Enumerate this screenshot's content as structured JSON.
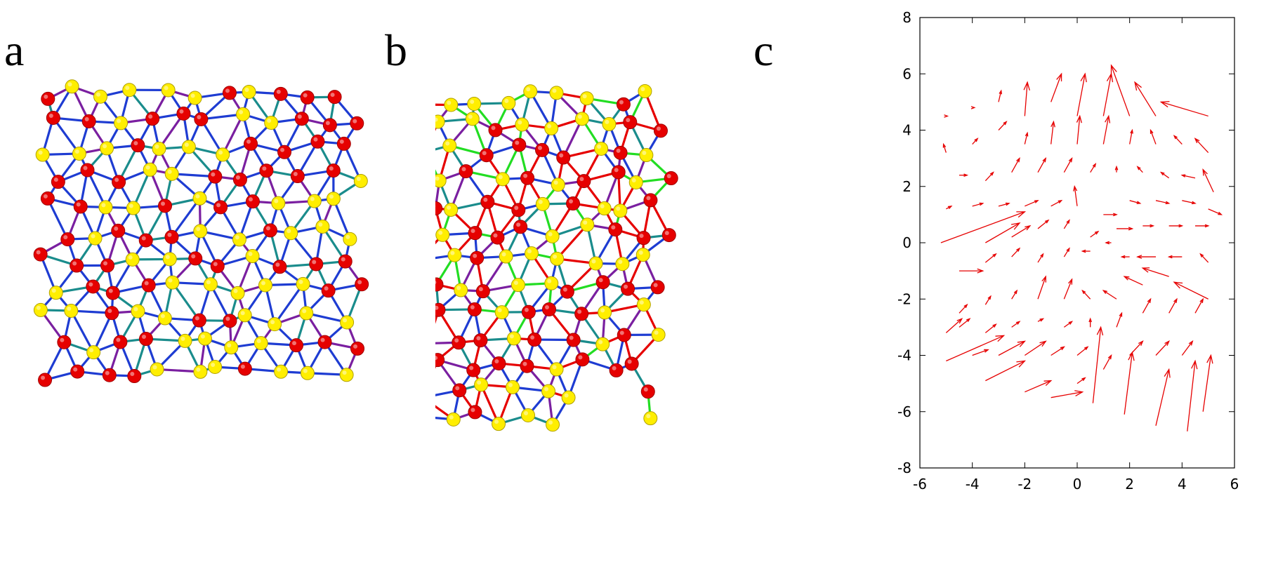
{
  "panels": {
    "a": {
      "label": "a"
    },
    "b": {
      "label": "b"
    },
    "c": {
      "label": "c"
    }
  },
  "colors": {
    "node_red": "#e60000",
    "node_yellow": "#ffee00",
    "edge_blue": "#1e3cd2",
    "edge_teal": "#1a8c8c",
    "edge_purple": "#7a1fa0",
    "edge_red": "#e60000",
    "edge_green": "#22dd22",
    "arrow": "#e60000",
    "axis": "#000000"
  },
  "chart_data": [
    {
      "type": "network",
      "panel": "a",
      "description_visible": "Triangulated particle network with red and yellow nodes; edges mostly blue with some teal and purple.",
      "node_types": [
        "red",
        "yellow"
      ],
      "edge_types": [
        "blue",
        "teal",
        "purple"
      ]
    },
    {
      "type": "network",
      "panel": "b",
      "description_visible": "Distorted triangulated particle network with red and yellow nodes; edges blue, teal, purple, red and green.",
      "node_types": [
        "red",
        "yellow"
      ],
      "edge_types": [
        "blue",
        "teal",
        "purple",
        "red",
        "green"
      ]
    },
    {
      "type": "quiver",
      "panel": "c",
      "title": "",
      "xlabel": "",
      "ylabel": "",
      "xlim": [
        -6,
        6
      ],
      "ylim": [
        -8,
        8
      ],
      "x_ticks": [
        "-6",
        "-4",
        "-2",
        "0",
        "2",
        "4",
        "6"
      ],
      "y_ticks": [
        "-8",
        "-6",
        "-4",
        "-2",
        "0",
        "2",
        "4",
        "6",
        "8"
      ],
      "grid": false,
      "arrows": [
        {
          "x": -5.0,
          "y": 4.5,
          "u": 0.05,
          "v": 0.0
        },
        {
          "x": -4.0,
          "y": 4.8,
          "u": 0.08,
          "v": 0.0
        },
        {
          "x": -3.0,
          "y": 5.0,
          "u": 0.1,
          "v": 0.4
        },
        {
          "x": -2.0,
          "y": 4.5,
          "u": 0.1,
          "v": 1.2
        },
        {
          "x": -1.0,
          "y": 5.0,
          "u": 0.4,
          "v": 1.0
        },
        {
          "x": 0.0,
          "y": 4.5,
          "u": 0.3,
          "v": 1.5
        },
        {
          "x": 1.0,
          "y": 4.5,
          "u": 0.3,
          "v": 1.5
        },
        {
          "x": 2.0,
          "y": 4.5,
          "u": -0.7,
          "v": 1.8
        },
        {
          "x": 3.0,
          "y": 4.5,
          "u": -0.8,
          "v": 1.2
        },
        {
          "x": 5.0,
          "y": 4.5,
          "u": -1.8,
          "v": 0.5
        },
        {
          "x": -5.0,
          "y": 3.2,
          "u": -0.1,
          "v": 0.3
        },
        {
          "x": -4.0,
          "y": 3.5,
          "u": 0.2,
          "v": 0.2
        },
        {
          "x": -3.0,
          "y": 4.0,
          "u": 0.3,
          "v": 0.3
        },
        {
          "x": -2.0,
          "y": 3.5,
          "u": 0.1,
          "v": 0.4
        },
        {
          "x": -1.0,
          "y": 3.5,
          "u": 0.1,
          "v": 0.8
        },
        {
          "x": 0.0,
          "y": 3.5,
          "u": 0.1,
          "v": 1.0
        },
        {
          "x": 1.0,
          "y": 3.5,
          "u": 0.2,
          "v": 1.0
        },
        {
          "x": 2.0,
          "y": 3.5,
          "u": 0.1,
          "v": 0.5
        },
        {
          "x": 3.0,
          "y": 3.5,
          "u": -0.2,
          "v": 0.5
        },
        {
          "x": 4.0,
          "y": 3.5,
          "u": -0.3,
          "v": 0.3
        },
        {
          "x": 5.0,
          "y": 3.2,
          "u": -0.5,
          "v": 0.5
        },
        {
          "x": -4.5,
          "y": 2.4,
          "u": 0.3,
          "v": 0.0
        },
        {
          "x": -3.5,
          "y": 2.2,
          "u": 0.3,
          "v": 0.3
        },
        {
          "x": -2.5,
          "y": 2.5,
          "u": 0.3,
          "v": 0.5
        },
        {
          "x": -1.5,
          "y": 2.5,
          "u": 0.3,
          "v": 0.5
        },
        {
          "x": -0.5,
          "y": 2.5,
          "u": 0.3,
          "v": 0.5
        },
        {
          "x": 0.5,
          "y": 2.5,
          "u": 0.2,
          "v": 0.3
        },
        {
          "x": 1.5,
          "y": 2.5,
          "u": 0.0,
          "v": 0.2
        },
        {
          "x": 2.5,
          "y": 2.5,
          "u": -0.2,
          "v": 0.2
        },
        {
          "x": 3.5,
          "y": 2.3,
          "u": -0.3,
          "v": 0.2
        },
        {
          "x": 4.5,
          "y": 2.3,
          "u": -0.5,
          "v": 0.1
        },
        {
          "x": 5.2,
          "y": 1.8,
          "u": -0.4,
          "v": 0.8
        },
        {
          "x": -5.0,
          "y": 1.2,
          "u": 0.2,
          "v": 0.1
        },
        {
          "x": -4.0,
          "y": 1.3,
          "u": 0.4,
          "v": 0.1
        },
        {
          "x": -3.0,
          "y": 1.3,
          "u": 0.4,
          "v": 0.1
        },
        {
          "x": -2.0,
          "y": 1.3,
          "u": 0.5,
          "v": 0.2
        },
        {
          "x": -1.0,
          "y": 1.3,
          "u": 0.4,
          "v": 0.2
        },
        {
          "x": 0.0,
          "y": 1.3,
          "u": -0.1,
          "v": 0.7
        },
        {
          "x": 1.0,
          "y": 1.0,
          "u": 0.5,
          "v": 0.0
        },
        {
          "x": 2.0,
          "y": 1.5,
          "u": 0.4,
          "v": -0.1
        },
        {
          "x": 3.0,
          "y": 1.5,
          "u": 0.5,
          "v": -0.1
        },
        {
          "x": 4.0,
          "y": 1.5,
          "u": 0.5,
          "v": -0.1
        },
        {
          "x": 5.0,
          "y": 1.2,
          "u": 0.5,
          "v": -0.2
        },
        {
          "x": -5.2,
          "y": 0.0,
          "u": 3.2,
          "v": 1.1
        },
        {
          "x": -3.5,
          "y": 0.0,
          "u": 1.3,
          "v": 0.7
        },
        {
          "x": -2.5,
          "y": 0.2,
          "u": 0.7,
          "v": 0.4
        },
        {
          "x": -1.5,
          "y": 0.5,
          "u": 0.4,
          "v": 0.3
        },
        {
          "x": -0.5,
          "y": 0.5,
          "u": 0.2,
          "v": 0.3
        },
        {
          "x": 0.5,
          "y": 0.2,
          "u": 0.3,
          "v": 0.2
        },
        {
          "x": 1.5,
          "y": 0.5,
          "u": 0.6,
          "v": 0.0
        },
        {
          "x": 2.5,
          "y": 0.6,
          "u": 0.4,
          "v": 0.0
        },
        {
          "x": 3.5,
          "y": 0.6,
          "u": 0.5,
          "v": 0.0
        },
        {
          "x": 4.5,
          "y": 0.6,
          "u": 0.5,
          "v": 0.0
        },
        {
          "x": -4.5,
          "y": -1.0,
          "u": 0.9,
          "v": 0.0
        },
        {
          "x": -3.5,
          "y": -0.7,
          "u": 0.4,
          "v": 0.3
        },
        {
          "x": -2.5,
          "y": -0.5,
          "u": 0.3,
          "v": 0.3
        },
        {
          "x": -1.5,
          "y": -0.7,
          "u": 0.2,
          "v": 0.3
        },
        {
          "x": -0.5,
          "y": -0.5,
          "u": 0.2,
          "v": 0.3
        },
        {
          "x": 0.5,
          "y": -0.3,
          "u": -0.3,
          "v": 0.0
        },
        {
          "x": 1.3,
          "y": 0.0,
          "u": -0.2,
          "v": 0.0
        },
        {
          "x": 2.0,
          "y": -0.5,
          "u": -0.3,
          "v": 0.0
        },
        {
          "x": 3.0,
          "y": -0.5,
          "u": -0.7,
          "v": 0.0
        },
        {
          "x": 4.0,
          "y": -0.5,
          "u": -0.5,
          "v": 0.0
        },
        {
          "x": 5.0,
          "y": -0.7,
          "u": -0.3,
          "v": 0.3
        },
        {
          "x": -4.5,
          "y": -2.5,
          "u": 0.3,
          "v": 0.3
        },
        {
          "x": -3.5,
          "y": -2.2,
          "u": 0.2,
          "v": 0.3
        },
        {
          "x": -2.5,
          "y": -2.0,
          "u": 0.2,
          "v": 0.3
        },
        {
          "x": -1.5,
          "y": -2.0,
          "u": 0.3,
          "v": 0.8
        },
        {
          "x": -0.5,
          "y": -2.0,
          "u": 0.3,
          "v": 0.7
        },
        {
          "x": 0.5,
          "y": -2.0,
          "u": -0.3,
          "v": 0.3
        },
        {
          "x": 1.5,
          "y": -2.0,
          "u": -0.5,
          "v": 0.3
        },
        {
          "x": 2.5,
          "y": -1.5,
          "u": -0.7,
          "v": 0.3
        },
        {
          "x": 3.5,
          "y": -1.2,
          "u": -1.0,
          "v": 0.3
        },
        {
          "x": 5.0,
          "y": -2.0,
          "u": -1.3,
          "v": 0.6
        },
        {
          "x": -4.5,
          "y": -3.0,
          "u": 0.4,
          "v": 0.3
        },
        {
          "x": -3.5,
          "y": -3.2,
          "u": 0.4,
          "v": 0.3
        },
        {
          "x": -2.5,
          "y": -3.0,
          "u": 0.3,
          "v": 0.2
        },
        {
          "x": -1.5,
          "y": -2.8,
          "u": 0.2,
          "v": 0.1
        },
        {
          "x": -0.5,
          "y": -3.0,
          "u": 0.3,
          "v": 0.2
        },
        {
          "x": 0.5,
          "y": -3.0,
          "u": 0.0,
          "v": 0.3
        },
        {
          "x": 1.5,
          "y": -3.0,
          "u": 0.2,
          "v": 0.5
        },
        {
          "x": 2.5,
          "y": -2.5,
          "u": 0.3,
          "v": 0.5
        },
        {
          "x": 3.5,
          "y": -2.5,
          "u": 0.3,
          "v": 0.5
        },
        {
          "x": 4.5,
          "y": -2.5,
          "u": 0.3,
          "v": 0.5
        },
        {
          "x": -5.0,
          "y": -3.2,
          "u": 0.6,
          "v": 0.5
        },
        {
          "x": -4.0,
          "y": -4.0,
          "u": 0.6,
          "v": 0.2
        },
        {
          "x": -3.0,
          "y": -4.0,
          "u": 1.0,
          "v": 0.5
        },
        {
          "x": -2.0,
          "y": -4.0,
          "u": 0.8,
          "v": 0.5
        },
        {
          "x": -1.0,
          "y": -4.0,
          "u": 0.5,
          "v": 0.3
        },
        {
          "x": 0.0,
          "y": -4.0,
          "u": 0.4,
          "v": 0.3
        },
        {
          "x": 1.0,
          "y": -4.5,
          "u": 0.3,
          "v": 0.5
        },
        {
          "x": 2.0,
          "y": -4.0,
          "u": 0.5,
          "v": 0.5
        },
        {
          "x": 3.0,
          "y": -4.0,
          "u": 0.5,
          "v": 0.5
        },
        {
          "x": 4.0,
          "y": -4.0,
          "u": 0.4,
          "v": 0.5
        },
        {
          "x": -5.0,
          "y": -4.2,
          "u": 2.2,
          "v": 0.9
        },
        {
          "x": -3.5,
          "y": -4.9,
          "u": 1.5,
          "v": 0.7
        },
        {
          "x": -2.0,
          "y": -5.3,
          "u": 1.0,
          "v": 0.4
        },
        {
          "x": -1.0,
          "y": -5.5,
          "u": 1.2,
          "v": 0.2
        },
        {
          "x": 0.0,
          "y": -5.0,
          "u": 0.3,
          "v": 0.2
        },
        {
          "x": 0.6,
          "y": -5.7,
          "u": 0.3,
          "v": 2.7
        },
        {
          "x": 1.8,
          "y": -6.1,
          "u": 0.3,
          "v": 2.2
        },
        {
          "x": 3.0,
          "y": -6.5,
          "u": 0.5,
          "v": 2.0
        },
        {
          "x": 4.2,
          "y": -6.7,
          "u": 0.3,
          "v": 2.5
        },
        {
          "x": 4.8,
          "y": -6.0,
          "u": 0.3,
          "v": 2.0
        }
      ]
    }
  ]
}
